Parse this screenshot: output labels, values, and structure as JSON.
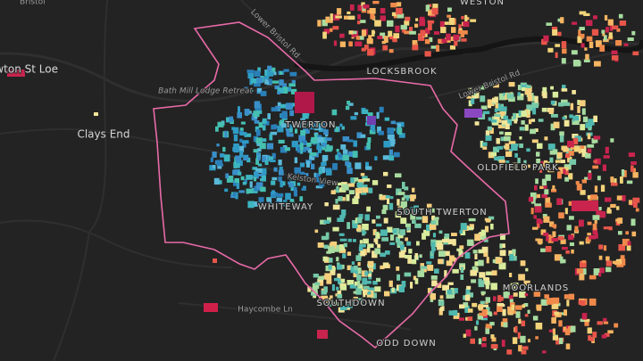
{
  "map": {
    "places": [
      "Bristol",
      "Newton St Loe",
      "Clays End",
      "Bath Mill Lodge Retreat",
      "Lower Bristol Rd",
      "LOCKSBROOK",
      "Lower Bristol Rd",
      "TWERTON",
      "Kelston View",
      "WHITEWAY",
      "SOUTH TWERTON",
      "OLDFIELD PARK",
      "Haycombe Ln",
      "SOUTHDOWN",
      "MOORLANDS",
      "ODD DOWN",
      "WESTON"
    ]
  }
}
